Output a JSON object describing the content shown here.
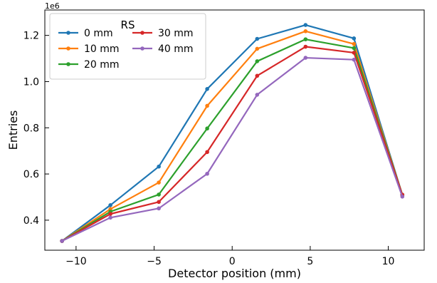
{
  "chart_data": {
    "type": "line",
    "xlabel": "Detector position (mm)",
    "ylabel": "Entries",
    "y_multiplier_label": "1e6",
    "xlim": [
      -12,
      12.3
    ],
    "ylim": [
      0.27,
      1.31
    ],
    "x_ticks": [
      -10,
      -5,
      0,
      5,
      10
    ],
    "y_ticks": [
      0.4,
      0.6,
      0.8,
      1.0,
      1.2
    ],
    "x_tick_labels": [
      "−10",
      "−5",
      "0",
      "5",
      "10"
    ],
    "y_tick_labels": [
      "0.4",
      "0.6",
      "0.8",
      "1.0",
      "1.2"
    ],
    "grid": false,
    "legend": {
      "title": "RS",
      "placement": "top-left",
      "columns": 2
    },
    "x": [
      -10.9,
      -7.8,
      -4.7,
      -1.6,
      1.6,
      4.7,
      7.8,
      10.9
    ],
    "series": [
      {
        "name": "0 mm",
        "color": "#1f77b4",
        "values": [
          0.31,
          0.465,
          0.632,
          0.968,
          1.185,
          1.245,
          1.187,
          0.51
        ]
      },
      {
        "name": "10 mm",
        "color": "#ff7f0e",
        "values": [
          0.31,
          0.448,
          0.563,
          0.895,
          1.142,
          1.218,
          1.163,
          0.51
        ]
      },
      {
        "name": "20 mm",
        "color": "#2ca02c",
        "values": [
          0.31,
          0.437,
          0.511,
          0.797,
          1.088,
          1.183,
          1.145,
          0.51
        ]
      },
      {
        "name": "30 mm",
        "color": "#d62728",
        "values": [
          0.31,
          0.427,
          0.479,
          0.695,
          1.025,
          1.151,
          1.125,
          0.51
        ]
      },
      {
        "name": "40 mm",
        "color": "#9467bd",
        "values": [
          0.31,
          0.411,
          0.451,
          0.601,
          0.943,
          1.103,
          1.095,
          0.502
        ]
      }
    ]
  }
}
